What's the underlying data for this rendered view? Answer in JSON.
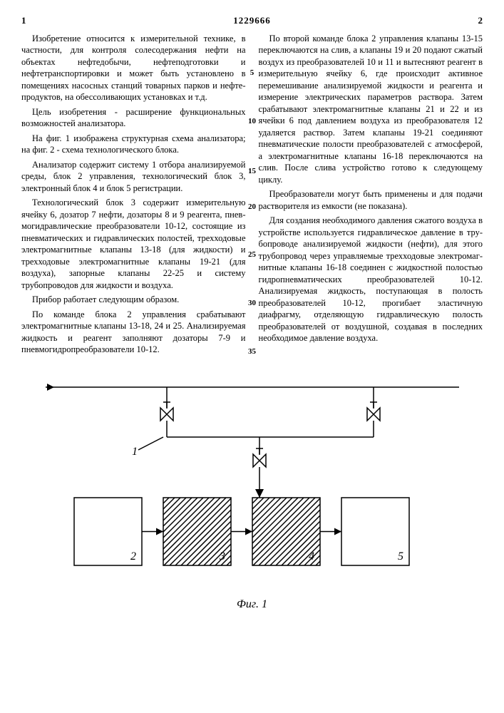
{
  "header": {
    "page_left": "1",
    "patent_number": "1229666",
    "page_right": "2"
  },
  "line_markers": {
    "m5": "5",
    "m10": "10",
    "m15": "15",
    "m20": "20",
    "m25": "25",
    "m30": "30",
    "m35": "35"
  },
  "text": {
    "left": {
      "p1": "Изобретение относится к измери­тельной технике, в частности, для контроля солесодержания нефти на объектах нефтедобычи, нефтеподготов­ки и нефтетранспортировки и может быть установлено в помещениях насос­ных станций товарных парков и нефте­продуктов, на обессоливающих установ­ках и т.д.",
      "p2": "Цель изобретения - расширение функциональных возможностей анали­затора.",
      "p3": "На фиг. 1 изображена структурная схема анализатора; на фиг. 2 - схе­ма технологического блока.",
      "p4": "Анализатор содержит систему 1 отбора анализируемой среды, блок 2 управления, технологический блок 3, электронный блок 4 и блок 5 регист­рации.",
      "p5": "Технологический блок 3 содержит измерительную ячейку 6, дозатор 7 нефти, дозаторы 8 и 9 реагента, пнев­могидравлические преобразователи 10-12, состоящие из пневматических и гидравлических полостей, трехходовые электромагнитные клапаны 13-18 (для жидкости) и трехходовые электромаг­нитные клапаны 19-21 (для воздуха), запорные клапаны 22-25 и систему трубопроводов для жидкости и воздуха.",
      "p6": "Прибор работает следующим образом.",
      "p7": "По команде блока 2 управления сра­батывают электромагнитные клапаны 13-18, 24 и 25. Анализируемая жид­кость и реагент заполняют дозаторы 7-9 и пневмогидропреобразователи 10-12."
    },
    "right": {
      "p1": "По второй команде блока 2 управ­ления клапаны 13-15 переключаются на слив, а клапаны 19 и 20 подают сжатый воздух из преобразователей 10 и 11 и вытесняют реагент в измерительную ячейку 6, где происходит активное перемешивание анализируемой жидкости и реагента и измерение электрических параметров раствора. Затем срабаты­вают электромагнитные клапаны 21 и 22 и из ячейки 6 под давлением возду­ха из преобразователя 12 удаляется раствор. Затем клапаны 19-21 соединя­ют пневматические полости преобразова­телей с атмосферой, а электромагнит­ные клапаны 16-18 переключаются на слив. После слива устройство готово к следующему циклу.",
      "p2": "Преобразователи могут быть приме­нены и для подачи растворителя из емкости (не показана).",
      "p3": "Для создания необходимого давления сжатого воздуха в устройстве исполь­зуется гидравлическое давление в тру­бопроводе анализируемой жидкости (нефти), для этого трубопровод через управляемые трехходовые электромаг­нитные клапаны 16-18 соединен с жид­костной полостью гидропневматических преобразователей 10-12. Анализируе­мая жидкость, поступающая в полость преобразователей 10-12, прогибает эластичную диафрагму, отделяющую гидравлическую полость преобразова­телей от воздушной, создавая в пос­ледних необходимое давление воздуха."
    }
  },
  "figure": {
    "label": "Фиг. 1",
    "blocks": {
      "b1": "1",
      "b2": "2",
      "b3": "3",
      "b4": "4",
      "b5": "5"
    },
    "style": {
      "stroke": "#000000",
      "stroke_width": 1.5,
      "fill": "#ffffff",
      "hatch_gap": 8,
      "block_w": 95,
      "block_h": 95,
      "font_size_label": 16,
      "font_size_fig": 18
    }
  }
}
